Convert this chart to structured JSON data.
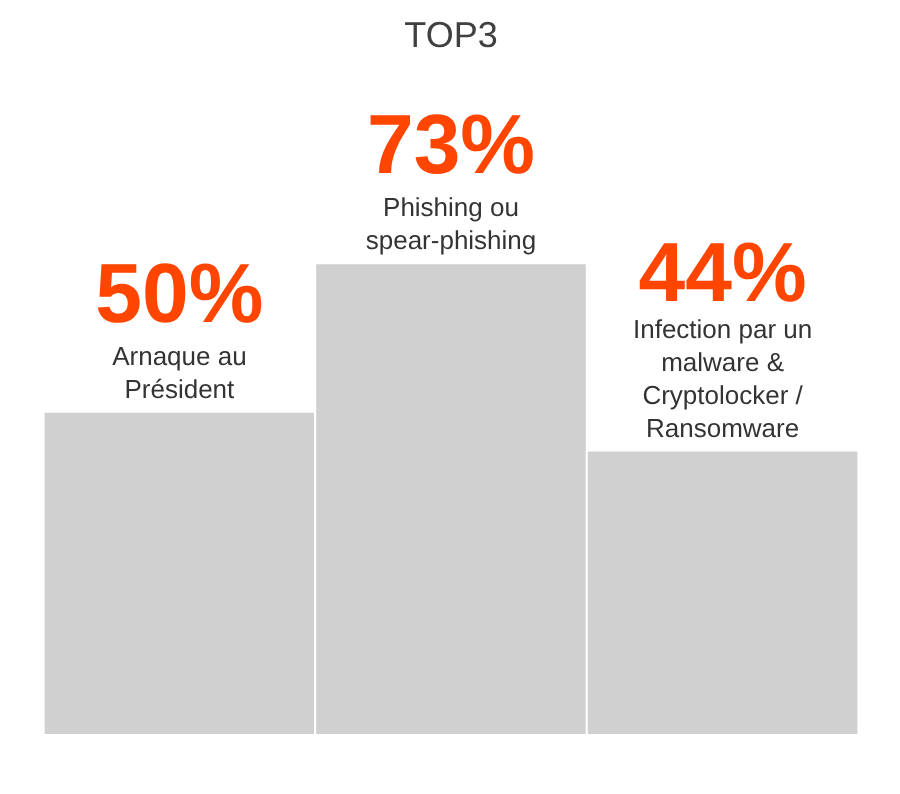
{
  "chart_data": {
    "type": "bar",
    "title": "TOP3",
    "categories": [
      "Arnaque au\nPrésident",
      "Phishing ou\nspear-phishing",
      "Infection par un\nmalware &\nCryptolocker /\nRansomware"
    ],
    "values": [
      50,
      73,
      44
    ],
    "value_labels": [
      "50%",
      "73%",
      "44%"
    ],
    "colors": [
      "#d0d0d0",
      "#d0d0d0",
      "#d0d0d0"
    ]
  }
}
